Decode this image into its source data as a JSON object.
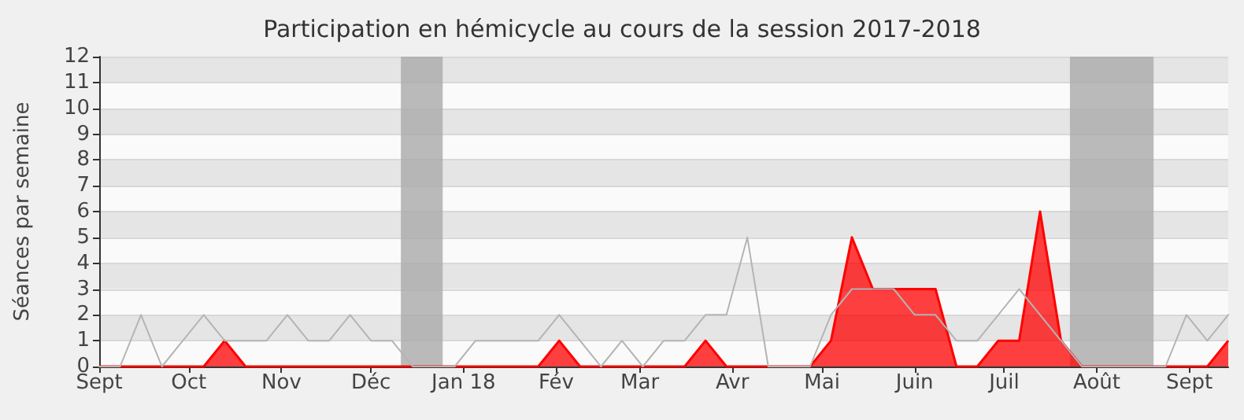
{
  "chart_data": {
    "type": "line",
    "title": "Participation en hémicycle au cours de la session 2017-2018",
    "ylabel": "Séances par semaine",
    "x": [
      "2017-09-01",
      "2017-09-08",
      "2017-09-15",
      "2017-09-22",
      "2017-09-29",
      "2017-10-06",
      "2017-10-13",
      "2017-10-20",
      "2017-10-27",
      "2017-11-03",
      "2017-11-10",
      "2017-11-17",
      "2017-11-24",
      "2017-12-01",
      "2017-12-08",
      "2017-12-15",
      "2017-12-22",
      "2017-12-29",
      "2018-01-05",
      "2018-01-12",
      "2018-01-19",
      "2018-01-26",
      "2018-02-02",
      "2018-02-09",
      "2018-02-16",
      "2018-02-23",
      "2018-03-02",
      "2018-03-09",
      "2018-03-16",
      "2018-03-23",
      "2018-03-30",
      "2018-04-06",
      "2018-04-13",
      "2018-04-20",
      "2018-04-27",
      "2018-05-04",
      "2018-05-11",
      "2018-05-18",
      "2018-05-25",
      "2018-06-01",
      "2018-06-08",
      "2018-06-15",
      "2018-06-22",
      "2018-06-29",
      "2018-07-06",
      "2018-07-13",
      "2018-07-20",
      "2018-07-27",
      "2018-08-03",
      "2018-08-10",
      "2018-08-17",
      "2018-08-24",
      "2018-08-31",
      "2018-09-07",
      "2018-09-14"
    ],
    "series": [
      {
        "color": "#b4b4b4",
        "values": [
          0,
          0,
          2,
          0,
          1,
          2,
          1,
          1,
          1,
          2,
          1,
          1,
          2,
          1,
          1,
          0,
          0,
          0,
          1,
          1,
          1,
          1,
          2,
          1,
          0,
          1,
          0,
          1,
          1,
          2,
          2,
          5,
          0,
          0,
          0,
          2,
          3,
          3,
          3,
          2,
          2,
          1,
          1,
          2,
          3,
          2,
          1,
          0,
          0,
          0,
          0,
          0,
          2,
          1,
          2
        ]
      },
      {
        "type": "area",
        "color": "#ff0000",
        "values": [
          0,
          0,
          0,
          0,
          0,
          0,
          1,
          0,
          0,
          0,
          0,
          0,
          0,
          0,
          0,
          0,
          0,
          0,
          0,
          0,
          0,
          0,
          1,
          0,
          0,
          0,
          0,
          0,
          0,
          1,
          0,
          0,
          0,
          0,
          0,
          1,
          5,
          3,
          3,
          3,
          3,
          0,
          0,
          1,
          1,
          6,
          1,
          0,
          0,
          0,
          0,
          0,
          0,
          0,
          1
        ]
      }
    ],
    "xlim": [
      "2017-09-01",
      "2018-09-14"
    ],
    "xticks": [
      {
        "value": "2017-09-01",
        "label": "Sept"
      },
      {
        "value": "2017-10-01",
        "label": "Oct"
      },
      {
        "value": "2017-11-01",
        "label": "Nov"
      },
      {
        "value": "2017-12-01",
        "label": "Déc"
      },
      {
        "value": "2018-01-01",
        "label": "Jan 18"
      },
      {
        "value": "2018-02-01",
        "label": "Fév"
      },
      {
        "value": "2018-03-01",
        "label": "Mar"
      },
      {
        "value": "2018-04-01",
        "label": "Avr"
      },
      {
        "value": "2018-05-01",
        "label": "Mai"
      },
      {
        "value": "2018-06-01",
        "label": "Juin"
      },
      {
        "value": "2018-07-01",
        "label": "Juil"
      },
      {
        "value": "2018-08-01",
        "label": "Août"
      },
      {
        "value": "2018-09-01",
        "label": "Sept"
      }
    ],
    "ylim": [
      0,
      12
    ],
    "yticks": [
      0,
      1,
      2,
      3,
      4,
      5,
      6,
      7,
      8,
      9,
      10,
      11,
      12
    ],
    "bands": [
      {
        "axis": "x",
        "from": "2017-12-11",
        "to": "2017-12-25",
        "color": "#aaaaaa"
      },
      {
        "axis": "x",
        "from": "2018-07-23",
        "to": "2018-08-20",
        "color": "#aaaaaa"
      }
    ],
    "grid": "y",
    "marker": "none",
    "line_style": "solid"
  }
}
